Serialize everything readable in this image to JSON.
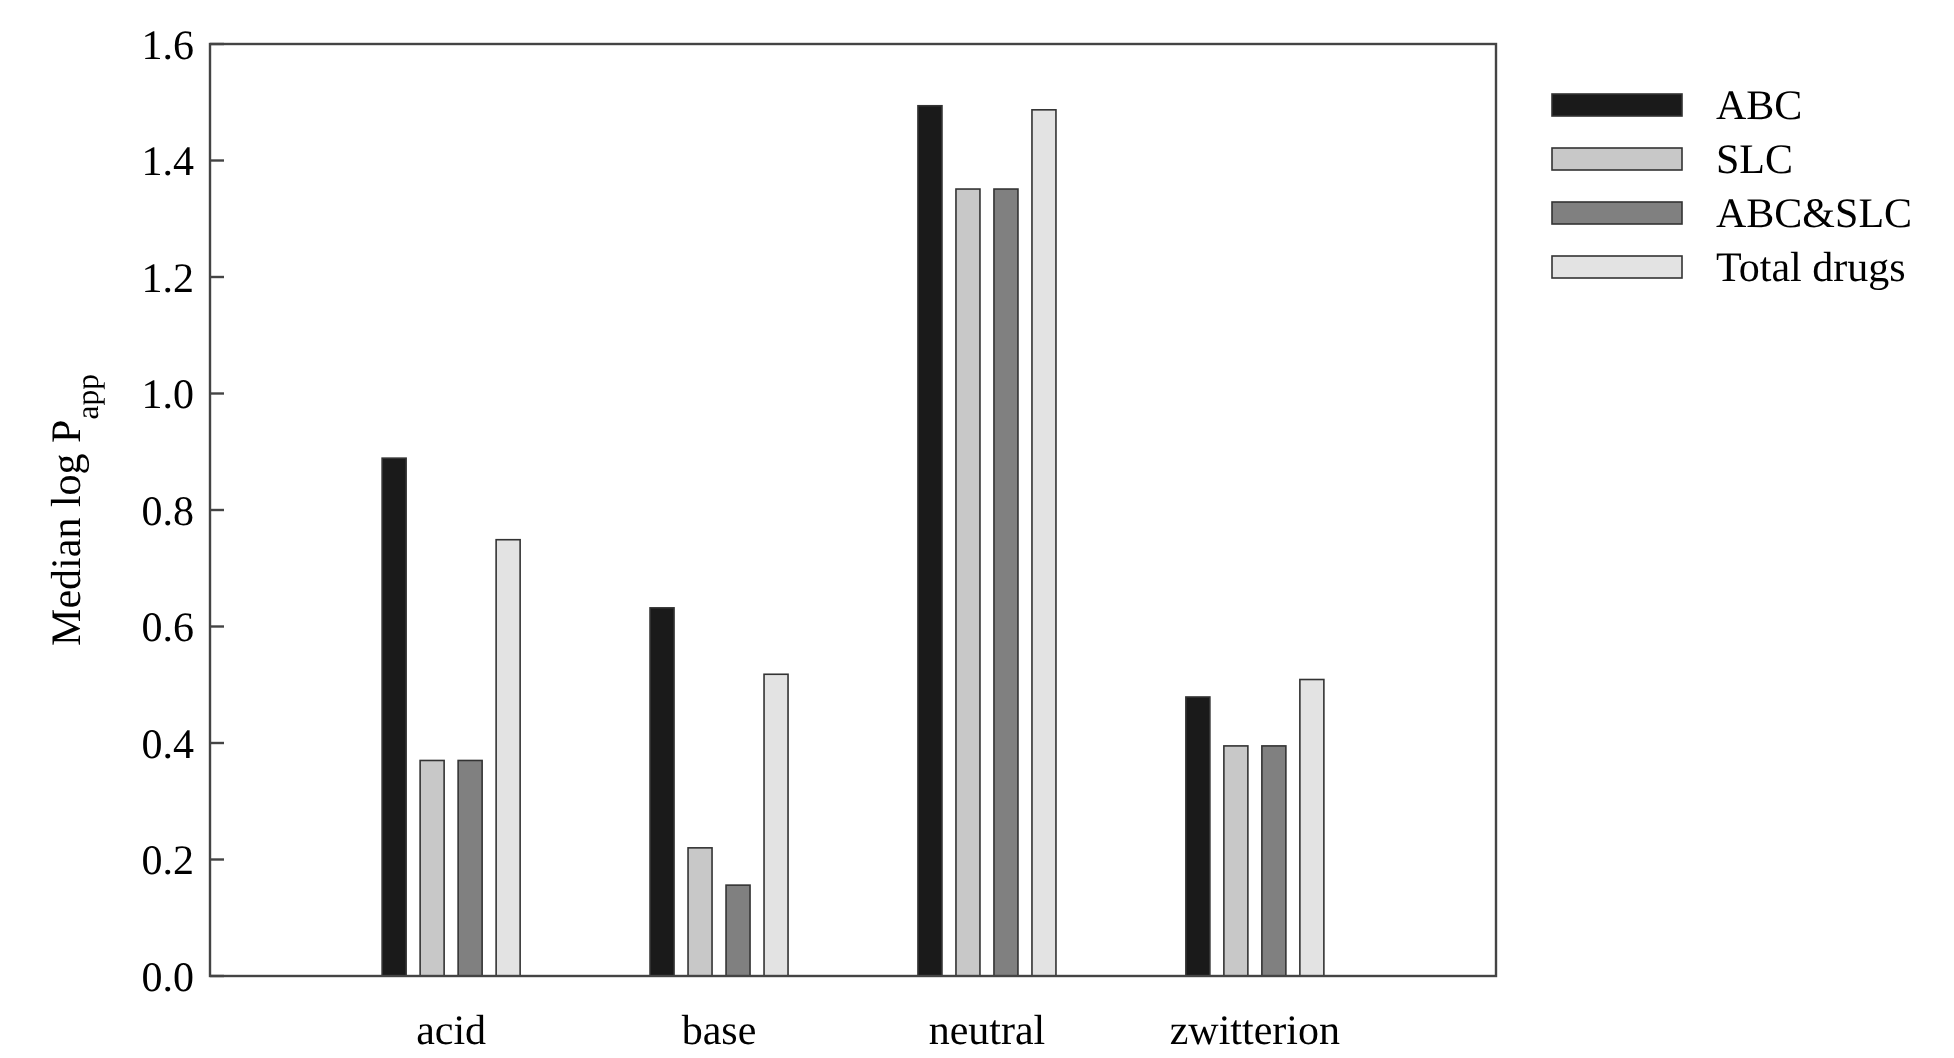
{
  "chart_data": {
    "type": "bar",
    "ylabel": "Median log P$_{app}$",
    "categories": [
      "acid",
      "base",
      "neutral",
      "zwitterion"
    ],
    "series": [
      {
        "name": "ABC",
        "color": "#1a1a1a",
        "values": [
          0.889,
          0.632,
          1.494,
          0.479
        ]
      },
      {
        "name": "SLC",
        "color": "#c8c8c8",
        "values": [
          0.37,
          0.22,
          1.351,
          0.395
        ]
      },
      {
        "name": "ABC&SLC",
        "color": "#808080",
        "values": [
          0.37,
          0.156,
          1.351,
          0.395
        ]
      },
      {
        "name": "Total drugs",
        "color": "#e3e3e3",
        "values": [
          0.749,
          0.518,
          1.487,
          0.509
        ]
      }
    ],
    "ylim": [
      0,
      1.6
    ],
    "yticks": [
      {
        "value": 0,
        "label": "0.0"
      },
      {
        "value": 0.2,
        "label": "0.2"
      },
      {
        "value": 0.4,
        "label": "0.4"
      },
      {
        "value": 0.6,
        "label": "0.6"
      },
      {
        "value": 0.8,
        "label": "0.8"
      },
      {
        "value": 1,
        "label": "1.0"
      },
      {
        "value": 1.2,
        "label": "1.2"
      },
      {
        "value": 1.4,
        "label": "1.4"
      },
      {
        "value": 1.6,
        "label": "1.6"
      }
    ],
    "legend": "top right",
    "grid": false
  }
}
